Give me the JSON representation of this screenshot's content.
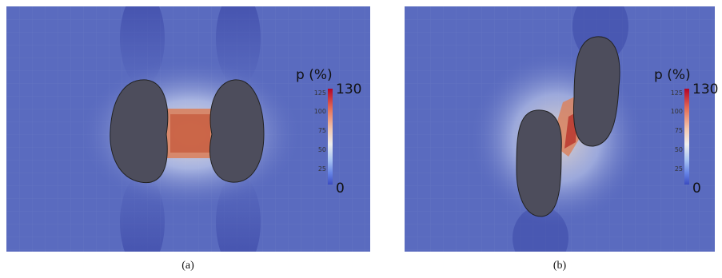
{
  "panels": [
    {
      "caption": "(a)",
      "colorbar": {
        "title": "p (%)",
        "max": "130",
        "min": "0",
        "ticks": [
          "125",
          "100",
          "75",
          "50",
          "25"
        ],
        "colors": [
          "#b40426",
          "#e7745b",
          "#eeeeee",
          "#6684e6",
          "#3b4cc0"
        ]
      }
    },
    {
      "caption": "(b)",
      "colorbar": {
        "title": "p (%)",
        "max": "130",
        "min": "0",
        "ticks": [
          "125",
          "100",
          "75",
          "50",
          "25"
        ],
        "colors": [
          "#b40426",
          "#e7745b",
          "#eeeeee",
          "#6684e6",
          "#3b4cc0"
        ]
      }
    }
  ],
  "colors": {
    "field_base": "#5a6bbf",
    "field_dark": "#4452b4",
    "particle": "#4d4d5c",
    "high": "#c65a3c",
    "mid": "#e8cdb0"
  }
}
